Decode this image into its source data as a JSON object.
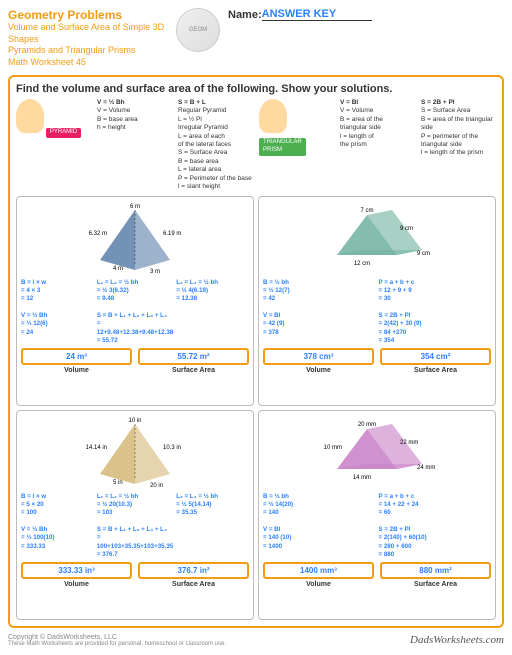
{
  "header": {
    "title": "Geometry Problems",
    "sub1": "Volume and Surface Area of Simple 3D Shapes",
    "sub2": "Pyramids and Triangular Prisms",
    "sub3": "Math Worksheet 45",
    "name": "Name:",
    "answer": "ANSWER KEY"
  },
  "instr": "Find the volume and surface area of the following.  Show your solutions.",
  "legend": {
    "pyr": {
      "v": "V = ⅓ Bh",
      "vdef": "V = Volume\nB = base area\nh = height",
      "s": "S = B + L",
      "l1": "Regular Pyramid\nL = ½ Pl",
      "l2": "Irregular Pyramid\nL = area of each\nof the lateral faces",
      "sdef": "S = Surface Area\nB = base area\nL = lateral area\nP = Perimeter of the base\nl = slant height",
      "tag": "PYRAMID"
    },
    "pri": {
      "v": "V = Bl",
      "vdef": "V = Volume\nB = area of the\ntriangular side\nl = length of\nthe prism",
      "s": "S = 2B + Pl",
      "sdef": "S = Surface Area\nB = area of the triangular side\nP = perimeter of the triangular side\nl = length of the prism",
      "tag": "TRIANGULAR\nPRISM"
    }
  },
  "cells": [
    {
      "type": "pyramid",
      "color": "#5b7fa8",
      "dims": {
        "a": "6 m",
        "b": "6.32 m",
        "c": "6.19 m",
        "d": "4 m",
        "e": "3 m"
      },
      "calc": [
        [
          "B = l × w",
          "= 4 × 3",
          "= 12",
          "",
          "V = ⅓ Bh",
          "= ⅓ 12(6)",
          "= 24"
        ],
        [
          "L₁ = L₃ = ½ bh",
          "= ½ 3(6.32)",
          "= 9.48",
          "",
          "S = B + L₁ + L₂ + L₃ + L₄",
          "= 12+9.48+12.38+9.48+12.38",
          "= 55.72"
        ],
        [
          "L₂ = L₄ = ½ bh",
          "= ½ 4(6.19)",
          "= 12.38"
        ]
      ],
      "ansV": "24 m³",
      "ansS": "55.72 m²"
    },
    {
      "type": "prism",
      "color": "#6fb09f",
      "dims": {
        "a": "7 cm",
        "b": "9 cm",
        "c": "12 cm",
        "d": "9 cm"
      },
      "calc": [
        [
          "B = ½ bh",
          "= ½ 12(7)",
          "= 42",
          "",
          "V = Bl",
          "= 42 (9)",
          "= 378"
        ],
        [
          "P = a + b + c",
          "= 12 + 9 + 9",
          "= 30",
          "",
          "S = 2B + Pl",
          "= 2(42) + 30 (9)",
          "= 84 +270",
          "= 354"
        ]
      ],
      "ansV": "378 cm³",
      "ansS": "354 cm²"
    },
    {
      "type": "pyramid",
      "color": "#d4b876",
      "dims": {
        "a": "10 in",
        "b": "14.14 in",
        "c": "10.3 in",
        "d": "5 in",
        "e": "20 in"
      },
      "calc": [
        [
          "B = l × w",
          "= 5 × 20",
          "= 100",
          "",
          "V = ⅓ Bh",
          "= ⅓ 100(10)",
          "= 333.33"
        ],
        [
          "L₁ = L₃ = ½ bh",
          "= ½ 20(10.3)",
          "= 103",
          "",
          "S = B + L₁ + L₂ + L₃ + L₄",
          "= 100+103+35.35+103+35.35",
          "= 376.7"
        ],
        [
          "L₂ = L₄ = ½ bh",
          "= ½ 5(14.14)",
          "= 35.35"
        ]
      ],
      "ansV": "333.33 in³",
      "ansS": "376.7 in²"
    },
    {
      "type": "prism",
      "color": "#c77fc7",
      "dims": {
        "a": "20 mm",
        "b": "22 mm",
        "c": "14 mm",
        "d": "24 mm",
        "e": "10 mm"
      },
      "calc": [
        [
          "B = ½ bh",
          "= ½ 14(20)",
          "= 140",
          "",
          "V = Bl",
          "= 140 (10)",
          "= 1400"
        ],
        [
          "P = a + b + c",
          "= 14 + 22 + 24",
          "= 60",
          "",
          "S = 2B + Pl",
          "= 2(140) + 60(10)",
          "= 280 + 600",
          "= 880"
        ]
      ],
      "ansV": "1400 mm³",
      "ansS": "880 mm²"
    }
  ],
  "labels": {
    "vol": "Volume",
    "sa": "Surface Area"
  },
  "footer": {
    "copy": "Copyright © DadsWorksheets, LLC",
    "note": "These Math Worksheets are provided for personal, homeschool or classroom use.",
    "brand": "DadsWorksheets.com"
  }
}
